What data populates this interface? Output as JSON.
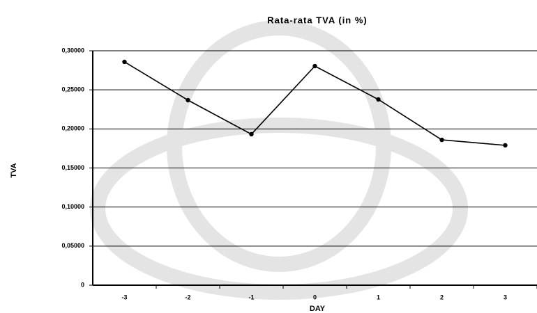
{
  "chart_data": {
    "type": "line",
    "title": "Rata-rata TVA (in %)",
    "x_label": "DAY",
    "y_label": "TVA",
    "categories": [
      "-3",
      "-2",
      "-1",
      "0",
      "1",
      "2",
      "3"
    ],
    "series": [
      {
        "name": "TVA",
        "color": "#000000",
        "values": [
          0.2858,
          0.2368,
          0.1932,
          0.2804,
          0.2377,
          0.186,
          0.179
        ]
      }
    ],
    "ylim": [
      0,
      0.3
    ],
    "yticks": [
      0,
      {
        "value": 0.05,
        "label": "0,05000"
      },
      {
        "value": 0.1,
        "label": "0,10000"
      },
      {
        "value": 0.15,
        "label": "0,15000"
      },
      {
        "value": 0.2,
        "label": "0,20000"
      },
      {
        "value": 0.25,
        "label": "0,25000"
      },
      {
        "value": 0.3,
        "label": "0,30000"
      }
    ],
    "grid": true,
    "legend": false
  }
}
